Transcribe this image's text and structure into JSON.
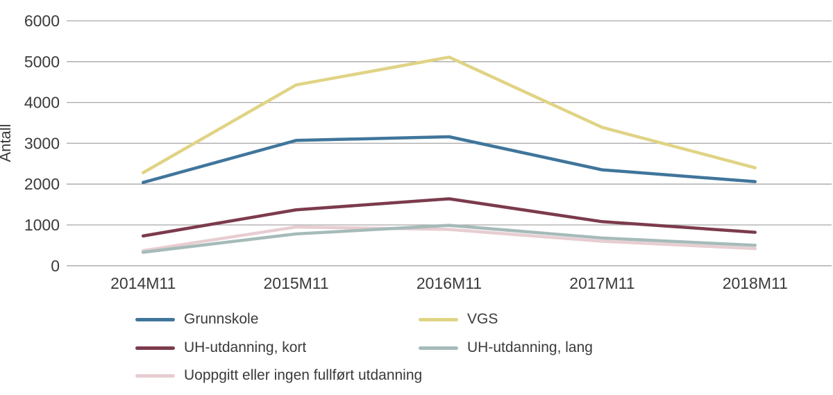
{
  "chart_data": {
    "type": "line",
    "title": "",
    "xlabel": "",
    "ylabel": "Antall",
    "ylim": [
      0,
      6000
    ],
    "yticks": [
      "0",
      "1000",
      "2000",
      "3000",
      "4000",
      "5000",
      "6000"
    ],
    "ytick_values": [
      0,
      1000,
      2000,
      3000,
      4000,
      5000,
      6000
    ],
    "categories": [
      "2014M11",
      "2015M11",
      "2016M11",
      "2017M11",
      "2018M11"
    ],
    "series": [
      {
        "name": "Grunnskole",
        "slug": "grunnskole",
        "color": "#40759B",
        "values": [
          2040,
          3070,
          3160,
          2350,
          2060
        ]
      },
      {
        "name": "VGS",
        "slug": "vgs",
        "color": "#E0D385",
        "values": [
          2280,
          4430,
          5110,
          3390,
          2400
        ]
      },
      {
        "name": "UH-utdanning, kort",
        "slug": "uh-utdanning-kort",
        "color": "#7C3B4D",
        "values": [
          730,
          1370,
          1640,
          1080,
          820
        ]
      },
      {
        "name": "UH-utdanning, lang",
        "slug": "uh-utdanning-lang",
        "color": "#A5BBB9",
        "values": [
          330,
          780,
          990,
          680,
          500
        ]
      },
      {
        "name": "Uoppgitt eller ingen fullført utdanning",
        "slug": "uoppgitt-eller-ingen-fullfort-utdanning",
        "color": "#E7CDD1",
        "values": [
          370,
          950,
          890,
          600,
          420
        ]
      }
    ],
    "grid": "horizontal",
    "gridline_color": "#A7A7A7",
    "text_color": "#3A3A3A",
    "legend_position": "bottom-left-two-columns",
    "draw_order": [
      0,
      1,
      2,
      4,
      3
    ]
  }
}
